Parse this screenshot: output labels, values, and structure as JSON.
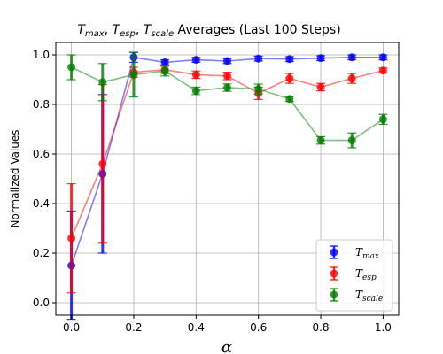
{
  "chart_data": {
    "type": "line",
    "title_parts": [
      {
        "text": "T",
        "italic": true
      },
      {
        "text": "max",
        "italic": true,
        "sub": true
      },
      {
        "text": ", ",
        "italic": false
      },
      {
        "text": "T",
        "italic": true
      },
      {
        "text": "esp",
        "italic": true,
        "sub": true
      },
      {
        "text": ", ",
        "italic": false
      },
      {
        "text": "T",
        "italic": true
      },
      {
        "text": "scale",
        "italic": true,
        "sub": true
      },
      {
        "text": " Averages (Last 100 Steps)",
        "italic": false
      }
    ],
    "xlabel": "α",
    "ylabel": "Normalized Values",
    "xlim": [
      -0.05,
      1.05
    ],
    "ylim": [
      -0.05,
      1.05
    ],
    "xticks": [
      0.0,
      0.2,
      0.4,
      0.6,
      0.8,
      1.0
    ],
    "xtick_labels": [
      "0.0",
      "0.2",
      "0.4",
      "0.6",
      "0.8",
      "1.0"
    ],
    "yticks": [
      0.0,
      0.2,
      0.4,
      0.6,
      0.8,
      1.0
    ],
    "ytick_labels": [
      "0.0",
      "0.2",
      "0.4",
      "0.6",
      "0.8",
      "1.0"
    ],
    "grid": true,
    "legend_position": "lower-right",
    "x": [
      0.0,
      0.1,
      0.2,
      0.3,
      0.4,
      0.5,
      0.6,
      0.7,
      0.8,
      0.9,
      1.0
    ],
    "series": [
      {
        "name_base": "T",
        "name_sub": "max",
        "color": "#0000ff",
        "values": [
          0.15,
          0.52,
          0.99,
          0.97,
          0.98,
          0.975,
          0.985,
          0.983,
          0.987,
          0.99,
          0.99
        ],
        "errors": [
          0.22,
          0.32,
          0.02,
          0.01,
          0.01,
          0.01,
          0.01,
          0.01,
          0.01,
          0.01,
          0.01
        ]
      },
      {
        "name_base": "T",
        "name_sub": "esp",
        "color": "#ff0000",
        "values": [
          0.26,
          0.56,
          0.93,
          0.94,
          0.92,
          0.915,
          0.845,
          0.905,
          0.87,
          0.905,
          0.937
        ],
        "errors": [
          0.22,
          0.32,
          0.02,
          0.015,
          0.015,
          0.015,
          0.025,
          0.02,
          0.015,
          0.02,
          0.01
        ]
      },
      {
        "name_base": "T",
        "name_sub": "scale",
        "color": "#008000",
        "values": [
          0.95,
          0.89,
          0.92,
          0.935,
          0.855,
          0.868,
          0.862,
          0.822,
          0.655,
          0.655,
          0.74
        ],
        "errors": [
          0.05,
          0.075,
          0.09,
          0.02,
          0.015,
          0.015,
          0.02,
          0.01,
          0.015,
          0.03,
          0.02
        ]
      }
    ]
  }
}
